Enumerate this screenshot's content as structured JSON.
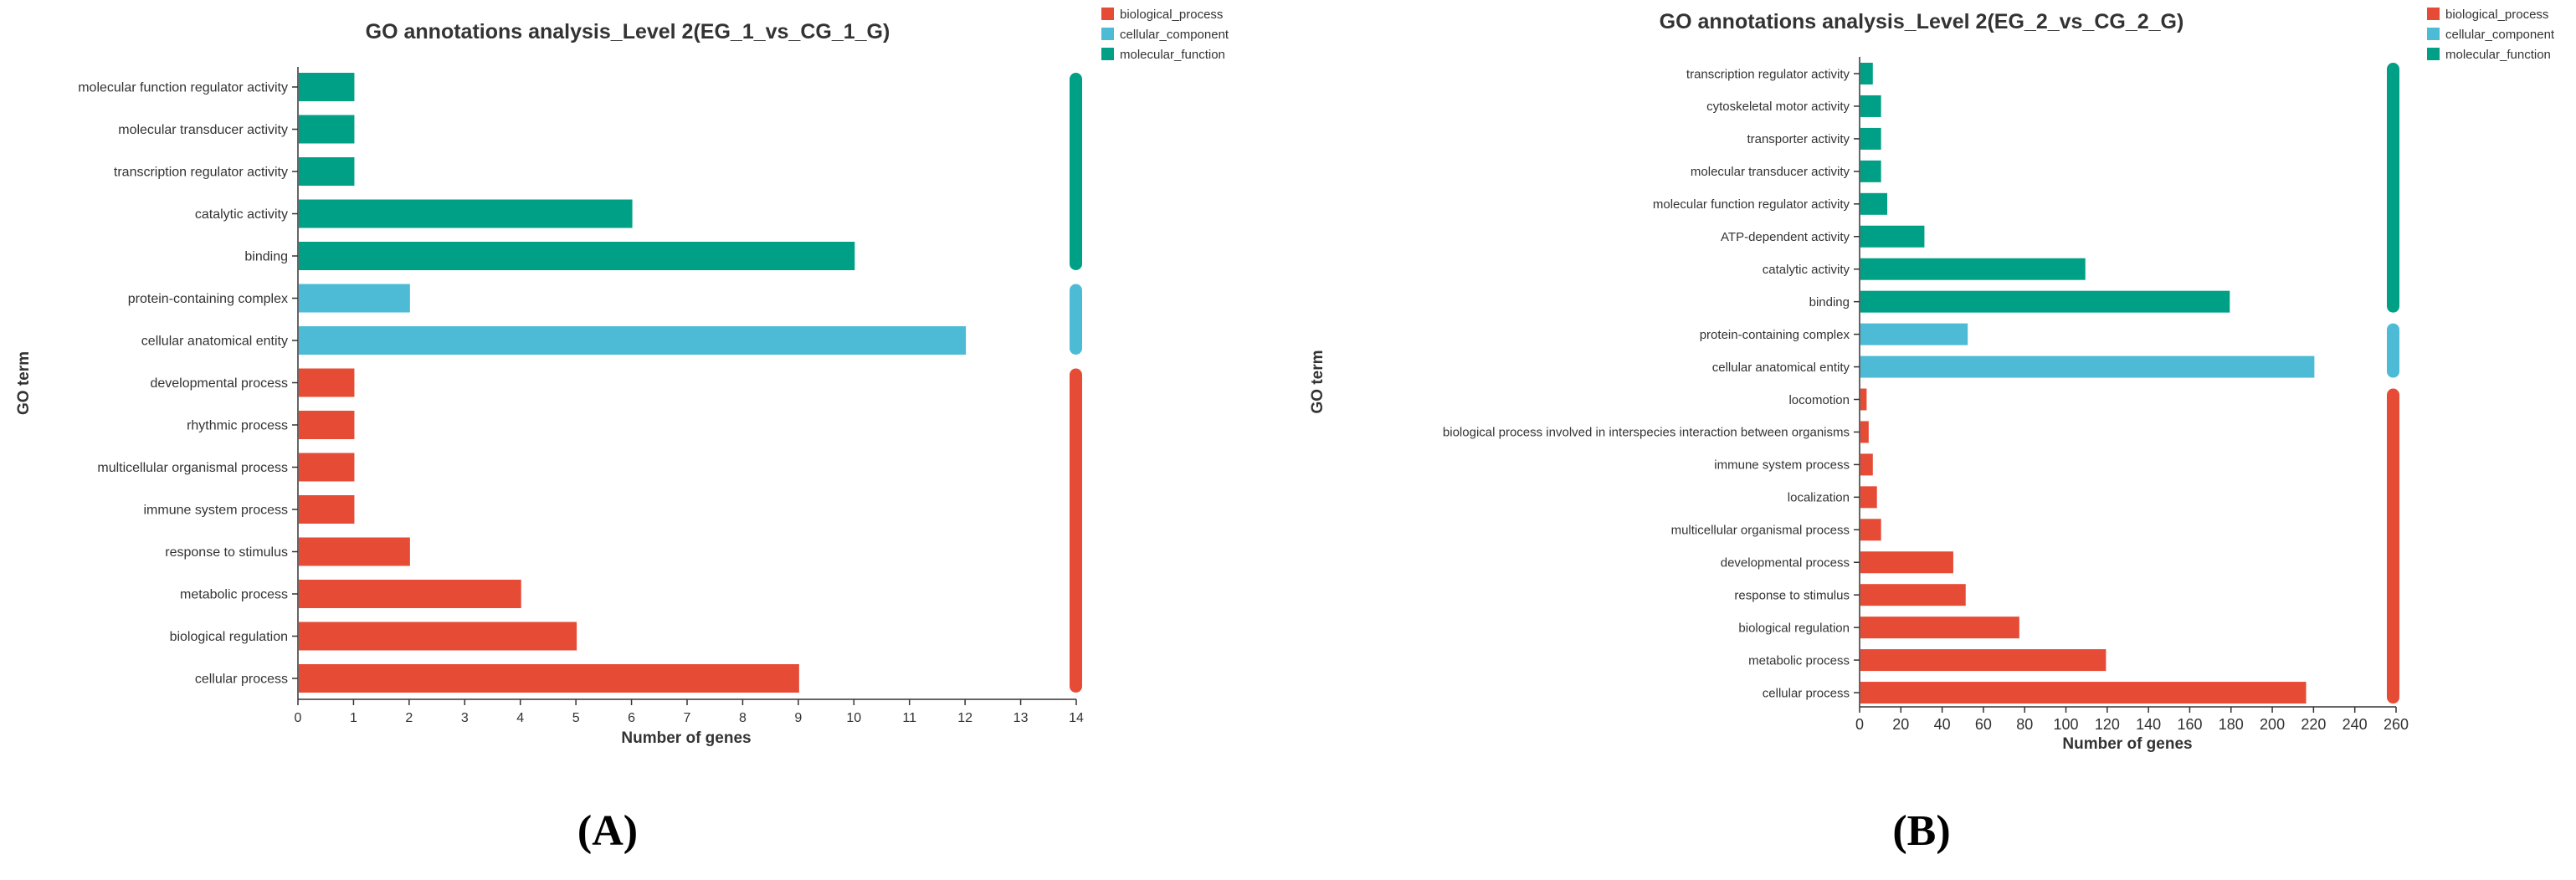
{
  "colors": {
    "biological_process": "#e64b35",
    "cellular_component": "#4dbbd5",
    "molecular_function": "#00a087"
  },
  "chart_data": [
    {
      "type": "bar",
      "orientation": "horizontal",
      "panel_label": "(A)",
      "title": "GO annotations analysis_Level 2(EG_1_vs_CG_1_G)",
      "xlabel": "Number of genes",
      "ylabel": "GO term",
      "xlim": [
        0,
        14
      ],
      "xticks": [
        0,
        1,
        2,
        3,
        4,
        5,
        6,
        7,
        8,
        9,
        10,
        11,
        12,
        13,
        14
      ],
      "legend": [
        "biological_process",
        "cellular_component",
        "molecular_function"
      ],
      "legend_position": "top-right",
      "categories": [
        {
          "label": "molecular function regulator activity",
          "value": 1,
          "group": "molecular_function"
        },
        {
          "label": "molecular transducer activity",
          "value": 1,
          "group": "molecular_function"
        },
        {
          "label": "transcription regulator activity",
          "value": 1,
          "group": "molecular_function"
        },
        {
          "label": "catalytic activity",
          "value": 6,
          "group": "molecular_function"
        },
        {
          "label": "binding",
          "value": 10,
          "group": "molecular_function"
        },
        {
          "label": "protein-containing complex",
          "value": 2,
          "group": "cellular_component"
        },
        {
          "label": "cellular anatomical entity",
          "value": 12,
          "group": "cellular_component"
        },
        {
          "label": "developmental process",
          "value": 1,
          "group": "biological_process"
        },
        {
          "label": "rhythmic process",
          "value": 1,
          "group": "biological_process"
        },
        {
          "label": "multicellular organismal process",
          "value": 1,
          "group": "biological_process"
        },
        {
          "label": "immune system process",
          "value": 1,
          "group": "biological_process"
        },
        {
          "label": "response to stimulus",
          "value": 2,
          "group": "biological_process"
        },
        {
          "label": "metabolic process",
          "value": 4,
          "group": "biological_process"
        },
        {
          "label": "biological regulation",
          "value": 5,
          "group": "biological_process"
        },
        {
          "label": "cellular process",
          "value": 9,
          "group": "biological_process"
        }
      ]
    },
    {
      "type": "bar",
      "orientation": "horizontal",
      "panel_label": "(B)",
      "title": "GO annotations analysis_Level 2(EG_2_vs_CG_2_G)",
      "xlabel": "Number of genes",
      "ylabel": "GO term",
      "xlim": [
        0,
        260
      ],
      "xticks": [
        0,
        20,
        40,
        60,
        80,
        100,
        120,
        140,
        160,
        180,
        200,
        220,
        240,
        260
      ],
      "legend": [
        "biological_process",
        "cellular_component",
        "molecular_function"
      ],
      "legend_position": "top-right",
      "categories": [
        {
          "label": "transcription regulator activity",
          "value": 6,
          "group": "molecular_function"
        },
        {
          "label": "cytoskeletal motor activity",
          "value": 10,
          "group": "molecular_function"
        },
        {
          "label": "transporter activity",
          "value": 10,
          "group": "molecular_function"
        },
        {
          "label": "molecular transducer activity",
          "value": 10,
          "group": "molecular_function"
        },
        {
          "label": "molecular function regulator activity",
          "value": 13,
          "group": "molecular_function"
        },
        {
          "label": "ATP-dependent activity",
          "value": 31,
          "group": "molecular_function"
        },
        {
          "label": "catalytic activity",
          "value": 109,
          "group": "molecular_function"
        },
        {
          "label": "binding",
          "value": 179,
          "group": "molecular_function"
        },
        {
          "label": "protein-containing complex",
          "value": 52,
          "group": "cellular_component"
        },
        {
          "label": "cellular anatomical entity",
          "value": 220,
          "group": "cellular_component"
        },
        {
          "label": "locomotion",
          "value": 3,
          "group": "biological_process"
        },
        {
          "label": "biological process involved in interspecies interaction between organisms",
          "value": 4,
          "group": "biological_process"
        },
        {
          "label": "immune system process",
          "value": 6,
          "group": "biological_process"
        },
        {
          "label": "localization",
          "value": 8,
          "group": "biological_process"
        },
        {
          "label": "multicellular organismal process",
          "value": 10,
          "group": "biological_process"
        },
        {
          "label": "developmental process",
          "value": 45,
          "group": "biological_process"
        },
        {
          "label": "response to stimulus",
          "value": 51,
          "group": "biological_process"
        },
        {
          "label": "biological regulation",
          "value": 77,
          "group": "biological_process"
        },
        {
          "label": "metabolic process",
          "value": 119,
          "group": "biological_process"
        },
        {
          "label": "cellular process",
          "value": 216,
          "group": "biological_process"
        }
      ]
    }
  ]
}
